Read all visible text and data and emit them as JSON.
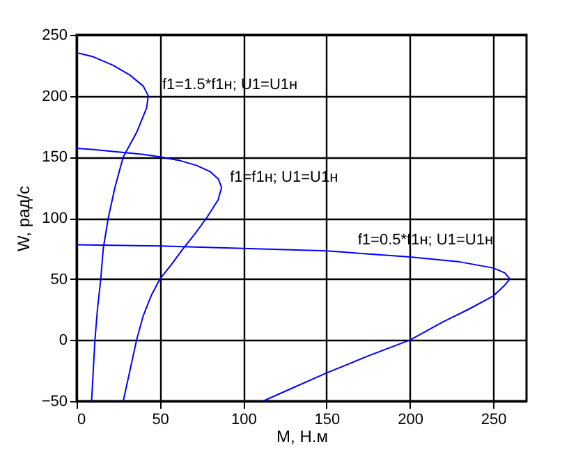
{
  "chart_data": {
    "type": "line",
    "xlabel": "M, Н.м",
    "ylabel": "W, рад/с",
    "xlim": [
      0,
      270
    ],
    "xticks": [
      0,
      50,
      100,
      150,
      200,
      250
    ],
    "ylim": [
      -50,
      250
    ],
    "yticks": [
      -50,
      0,
      50,
      100,
      150,
      200,
      250
    ],
    "grid": true,
    "series": [
      {
        "name": "f1=1.5*f1н; U1=U1н",
        "color": "#0000ff",
        "x": [
          1,
          10,
          22,
          32,
          40,
          43,
          42,
          36,
          28,
          23,
          19,
          16,
          14.5,
          12.5,
          11,
          10,
          9
        ],
        "values": [
          235,
          232,
          225,
          217,
          208,
          200,
          190,
          170,
          150,
          125,
          100,
          75,
          50,
          25,
          0,
          -25,
          -50
        ]
      },
      {
        "name": "f1=f1н; U1=U1н",
        "color": "#0000ff",
        "x": [
          0,
          10,
          25,
          40,
          50,
          62,
          72,
          80,
          85,
          87,
          85,
          78,
          71,
          64,
          57,
          50,
          45,
          40,
          36,
          32,
          28
        ],
        "values": [
          157,
          156,
          154,
          152,
          150,
          147,
          143,
          138,
          132,
          125,
          115,
          100,
          87,
          75,
          62,
          50,
          37,
          20,
          0,
          -25,
          -50
        ]
      },
      {
        "name": "f1=0.5*f1н; U1=U1н",
        "color": "#0000ff",
        "x": [
          0,
          50,
          100,
          150,
          200,
          230,
          250,
          257,
          260,
          257,
          250,
          235,
          220,
          200,
          175,
          150,
          130,
          112
        ],
        "values": [
          78,
          77,
          75,
          73,
          68,
          64,
          59,
          55,
          50,
          45,
          36,
          25,
          15,
          0,
          -13,
          -27,
          -39,
          -50
        ]
      }
    ]
  }
}
